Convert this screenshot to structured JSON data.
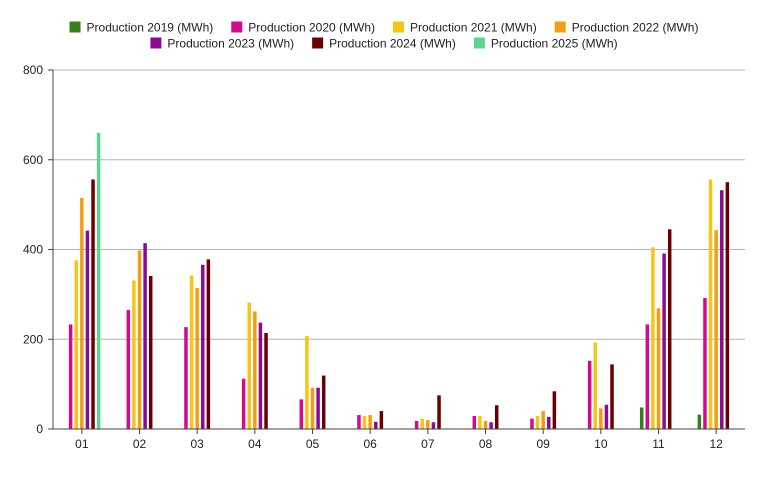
{
  "chart_data": {
    "type": "bar",
    "title": "",
    "xlabel": "",
    "ylabel": "",
    "ylim": [
      0,
      800
    ],
    "yticks": [
      "0",
      "200",
      "400",
      "600",
      "800"
    ],
    "grid": "horizontal",
    "legend_position": "top",
    "categories": [
      "01",
      "02",
      "03",
      "04",
      "05",
      "06",
      "07",
      "08",
      "09",
      "10",
      "11",
      "12"
    ],
    "series": [
      {
        "name": "Production 2019 (MWh)",
        "color": "#3a7d1e",
        "values": [
          null,
          null,
          null,
          null,
          null,
          null,
          null,
          null,
          null,
          null,
          48,
          32
        ]
      },
      {
        "name": "Production 2020 (MWh)",
        "color": "#d6088c",
        "values": [
          233,
          265,
          227,
          112,
          66,
          31,
          18,
          29,
          23,
          152,
          233,
          292
        ]
      },
      {
        "name": "Production 2021 (MWh)",
        "color": "#f5c518",
        "values": [
          376,
          331,
          342,
          282,
          207,
          29,
          23,
          29,
          29,
          193,
          405,
          556
        ]
      },
      {
        "name": "Production 2022 (MWh)",
        "color": "#f29d12",
        "values": [
          515,
          398,
          314,
          262,
          92,
          31,
          20,
          18,
          40,
          46,
          269,
          443
        ]
      },
      {
        "name": "Production 2023 (MWh)",
        "color": "#8b0a93",
        "values": [
          442,
          414,
          366,
          237,
          92,
          16,
          15,
          15,
          27,
          54,
          391,
          532
        ]
      },
      {
        "name": "Production 2024 (MWh)",
        "color": "#6b0000",
        "values": [
          556,
          341,
          378,
          214,
          119,
          40,
          75,
          53,
          84,
          144,
          445,
          550
        ]
      },
      {
        "name": "Production 2025 (MWh)",
        "color": "#5cd68f",
        "values": [
          660,
          null,
          null,
          null,
          null,
          null,
          null,
          null,
          null,
          null,
          null,
          null
        ]
      }
    ]
  }
}
